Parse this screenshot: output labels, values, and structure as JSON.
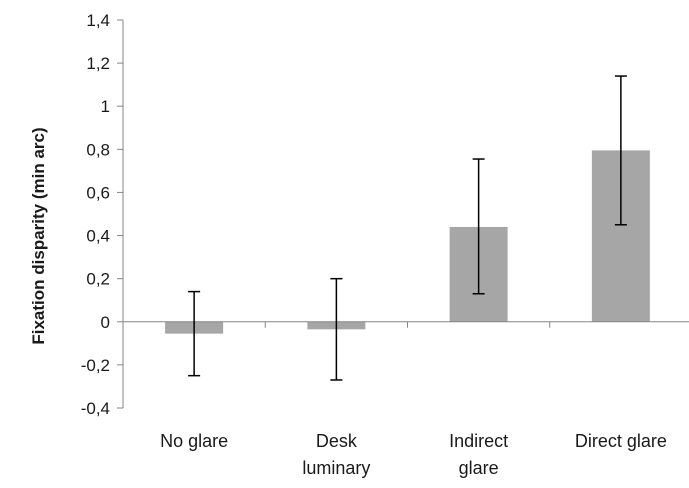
{
  "chart_data": {
    "type": "bar",
    "categories": [
      "No glare",
      "Desk luminary",
      "Indirect glare",
      "Direct glare"
    ],
    "category_lines": [
      [
        "No glare"
      ],
      [
        "Desk",
        "luminary"
      ],
      [
        "Indirect",
        "glare"
      ],
      [
        "Direct glare"
      ]
    ],
    "values": [
      -0.055,
      -0.035,
      0.44,
      0.795
    ],
    "error_low": [
      -0.25,
      -0.27,
      0.13,
      0.45
    ],
    "error_high": [
      0.14,
      0.2,
      0.755,
      1.14
    ],
    "title": "",
    "xlabel": "",
    "ylabel": "Fixation disparity (min arc)",
    "ylim": [
      -0.4,
      1.4
    ],
    "yticks": [
      -0.4,
      -0.2,
      0,
      0.2,
      0.4,
      0.6,
      0.8,
      1,
      1.2,
      1.4
    ],
    "ytick_labels": [
      "-0,4",
      "-0,2",
      "0",
      "0,2",
      "0,4",
      "0,6",
      "0,8",
      "1",
      "1,2",
      "1,4"
    ],
    "grid": false,
    "legend": "none",
    "bar_color": "#a6a6a6",
    "axis_color": "#868686",
    "error_bar_color": "#000000"
  }
}
